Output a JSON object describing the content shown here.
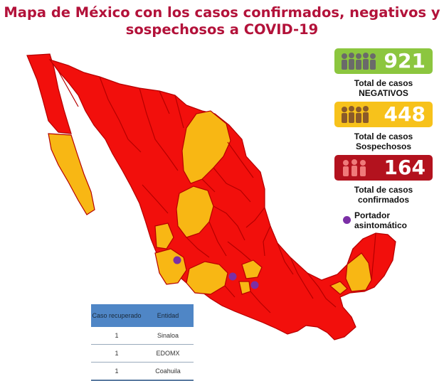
{
  "title": {
    "line1": "Mapa de México con los casos confirmados, negativos y",
    "line2": "sospechosos a COVID-19"
  },
  "stats": [
    {
      "value": "921",
      "label1": "Total de casos",
      "label2": "NEGATIVOS",
      "color": "#8cc63f"
    },
    {
      "value": "448",
      "label1": "Total de casos",
      "label2": "Sospechosos",
      "color": "#f7c21b"
    },
    {
      "value": "164",
      "label1": "Total de casos",
      "label2": "confirmados",
      "color": "#b3121e"
    }
  ],
  "legend": {
    "label1": "Portador",
    "label2": "asintomático",
    "color": "#7b2fa6"
  },
  "colors": {
    "confirmed": "#f20f0c",
    "suspect": "#f8b714",
    "border": "#b50000"
  },
  "recovered_table": {
    "headers": [
      "Caso recuperado",
      "Entidad"
    ],
    "rows": [
      {
        "count": "1",
        "entity": "Sinaloa"
      },
      {
        "count": "1",
        "entity": "EDOMX"
      },
      {
        "count": "1",
        "entity": "Coahuila"
      }
    ]
  }
}
